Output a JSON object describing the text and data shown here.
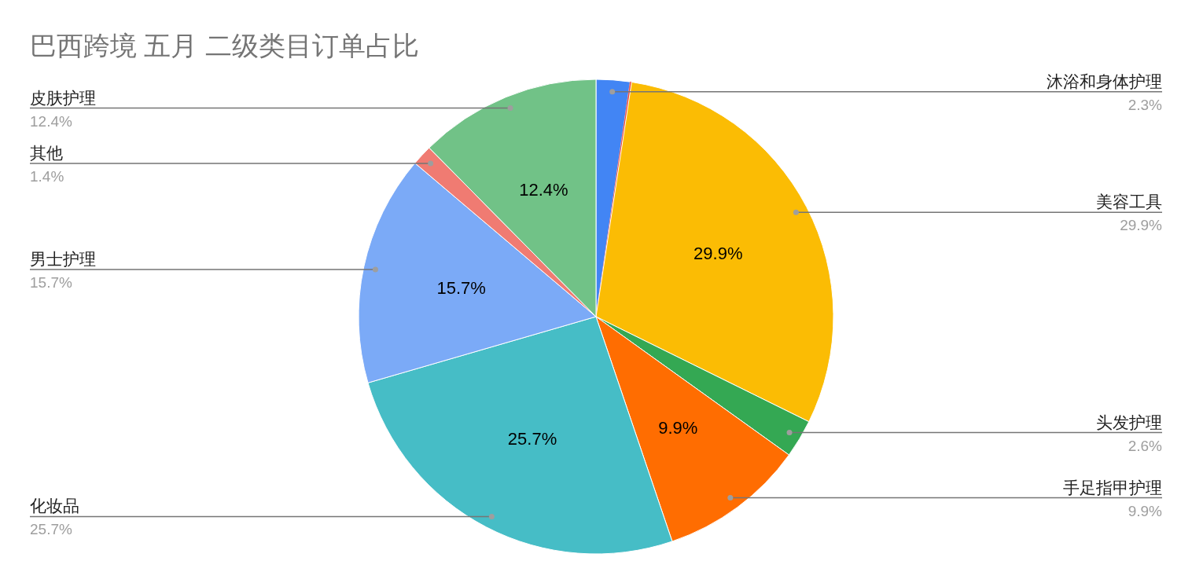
{
  "chart_data": {
    "type": "pie",
    "title": "巴西跨境 五月 二级类目订单占比",
    "categories": [
      "沐浴和身体护理",
      null,
      "美容工具",
      "头发护理",
      "手足指甲护理",
      "化妆品",
      "男士护理",
      "其他",
      "皮肤护理"
    ],
    "values": [
      2.3,
      0.1,
      29.9,
      2.6,
      9.9,
      25.7,
      15.7,
      1.4,
      12.4
    ],
    "colors": [
      "#4285f4",
      "#ea4335",
      "#fbbc04",
      "#34a853",
      "#ff6d01",
      "#46bdc6",
      "#7baaf7",
      "#f07b72",
      "#71c287"
    ],
    "value_labels": [
      "2.3%",
      null,
      "29.9%",
      "2.6%",
      "9.9%",
      "25.7%",
      "15.7%",
      "1.4%",
      "12.4%"
    ]
  }
}
